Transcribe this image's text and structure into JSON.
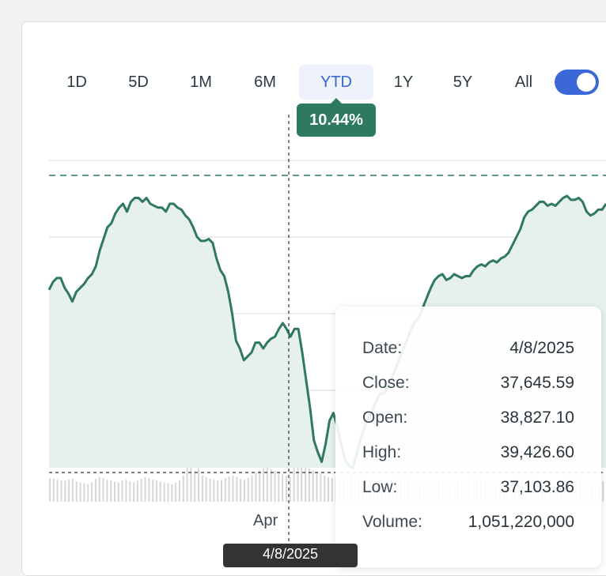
{
  "tabs": [
    {
      "label": "1D",
      "active": false
    },
    {
      "label": "5D",
      "active": false
    },
    {
      "label": "1M",
      "active": false
    },
    {
      "label": "6M",
      "active": false
    },
    {
      "label": "YTD",
      "active": true
    },
    {
      "label": "1Y",
      "active": false
    },
    {
      "label": "5Y",
      "active": false
    },
    {
      "label": "All",
      "active": false
    }
  ],
  "toggle": {
    "on": true
  },
  "change_badge": "10.44%",
  "tooltip": {
    "rows": [
      {
        "label": "Date:",
        "value": "4/8/2025"
      },
      {
        "label": "Close:",
        "value": "37,645.59"
      },
      {
        "label": "Open:",
        "value": "38,827.10"
      },
      {
        "label": "High:",
        "value": "39,426.60"
      },
      {
        "label": "Low:",
        "value": "37,103.86"
      },
      {
        "label": "Volume:",
        "value": "1,051,220,000"
      }
    ]
  },
  "crosshair_date": "4/8/2025",
  "colors": {
    "line": "#2f7a5c",
    "area": "#e6f0ec",
    "accent": "#3b68d6",
    "badge": "#2e7a5e"
  },
  "chart_data": {
    "type": "line",
    "xlabel": "",
    "ylabel": "",
    "x_tick_labels": [
      "Apr"
    ],
    "grid": true,
    "series": [
      {
        "values": [
          45.1,
          45.5,
          45.7,
          45.7,
          45.2,
          44.9,
          44.5,
          45.0,
          45.2,
          45.4,
          45.7,
          45.9,
          46.3,
          47.1,
          47.7,
          48.3,
          48.5,
          49.0,
          49.3,
          49.5,
          49.1,
          49.6,
          49.8,
          49.8,
          49.6,
          49.8,
          49.5,
          49.4,
          49.3,
          49.3,
          49.1,
          49.5,
          49.5,
          49.3,
          49.2,
          48.9,
          48.7,
          48.3,
          47.8,
          47.6,
          47.6,
          47.7,
          47.5,
          46.7,
          46.1,
          45.8,
          45.0,
          43.9,
          42.5,
          42.1,
          41.5,
          41.7,
          41.9,
          42.4,
          42.4,
          42.1,
          42.4,
          42.6,
          42.7,
          43.1,
          43.4,
          43.1,
          42.7,
          43.1,
          43.1,
          41.9,
          40.5,
          39.1,
          37.4,
          36.8,
          36.3,
          37.2,
          38.4,
          38.8,
          38.1,
          37.2,
          36.4,
          36.1,
          36.0,
          36.7,
          37.5,
          38.1,
          38.5,
          38.9,
          39.4,
          39.8,
          39.8,
          40.2,
          40.6,
          41.1,
          41.6,
          42.1,
          42.6,
          43.1,
          43.5,
          43.7,
          44.2,
          44.7,
          45.2,
          45.6,
          45.8,
          45.9,
          45.6,
          45.7,
          45.9,
          45.8,
          45.7,
          45.8,
          45.8,
          46.1,
          46.3,
          46.4,
          46.3,
          46.5,
          46.6,
          46.5,
          46.7,
          46.8,
          47.0,
          47.4,
          47.8,
          48.2,
          48.8,
          49.1,
          49.2,
          49.4,
          49.6,
          49.6,
          49.4,
          49.5,
          49.4,
          49.6,
          49.8,
          49.9,
          49.7,
          49.7,
          49.8,
          49.6,
          49.1,
          48.9,
          49.0,
          49.2,
          49.2,
          49.5
        ]
      }
    ],
    "volume": [
      27,
      26,
      25,
      24,
      24,
      25,
      26,
      23,
      22,
      21,
      20,
      22,
      26,
      28,
      27,
      25,
      24,
      23,
      22,
      24,
      25,
      23,
      22,
      24,
      26,
      28,
      27,
      25,
      24,
      23,
      22,
      21,
      20,
      22,
      24,
      30,
      90,
      40,
      35,
      38,
      30,
      28,
      26,
      25,
      24,
      25,
      27,
      29,
      30,
      28,
      26,
      25,
      27,
      30,
      33,
      36,
      38,
      40,
      37,
      35,
      33,
      31,
      30,
      28,
      60,
      45,
      40,
      42,
      38,
      36,
      34,
      32,
      30,
      28,
      27,
      26,
      25,
      27,
      29,
      31,
      30,
      28,
      26,
      25,
      24,
      23,
      22,
      21,
      22,
      24,
      25,
      26,
      28,
      27,
      26,
      25,
      24,
      23,
      22,
      21,
      22,
      23,
      25,
      24,
      23,
      22,
      21,
      22,
      24,
      25,
      26,
      27,
      28,
      26,
      25,
      24,
      23,
      22,
      21,
      22,
      24,
      25,
      26,
      27,
      28,
      30,
      28,
      26,
      25,
      24,
      23,
      22,
      21,
      22,
      23,
      25,
      27,
      28,
      26,
      25,
      24,
      23,
      22,
      21,
      22,
      23
    ]
  }
}
